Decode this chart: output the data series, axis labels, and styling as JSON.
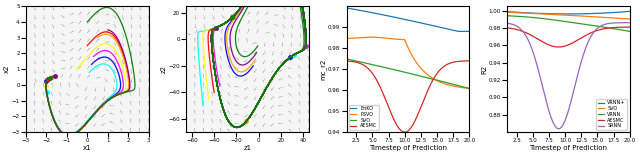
{
  "fig_width": 6.4,
  "fig_height": 1.55,
  "dpi": 100,
  "panel1": {
    "xlabel": "x1",
    "ylabel": "x2",
    "xlim": [
      -3,
      3
    ],
    "ylim": [
      -3,
      5
    ],
    "quiver_color": "#333333",
    "traj_colors": [
      "cyan",
      "blue",
      "magenta",
      "yellow",
      "red",
      "orange",
      "purple",
      "green"
    ],
    "bg_color": "#f5f5f5"
  },
  "panel2": {
    "xlabel": "z1",
    "ylabel": "z2",
    "xlim": [
      -65,
      45
    ],
    "ylim": [
      -70,
      25
    ],
    "quiver_color": "#333333",
    "traj_colors": [
      "cyan",
      "yellow",
      "red",
      "magenta",
      "blue",
      "orange",
      "purple",
      "green"
    ],
    "bg_color": "#f5f5f5"
  },
  "panel3": {
    "xlabel": "Timestep of Prediction",
    "ylabel": "mc_r2",
    "xlim": [
      1,
      20
    ],
    "ylim": [
      0.94,
      1.0
    ],
    "yticks": [
      0.94,
      0.95,
      0.96,
      0.97,
      0.98,
      0.99
    ],
    "xticks": [
      2.5,
      5.0,
      7.5,
      10.0,
      12.5,
      15.0,
      17.5,
      20.0
    ],
    "enko_color": "#1f77b4",
    "psvo_color": "#ff7f0e",
    "svo_color": "#2ca02c",
    "aesmc_color": "#d62728"
  },
  "panel4": {
    "xlabel": "Timestep of Prediction",
    "ylabel": "R2",
    "xlim": [
      1,
      20
    ],
    "ylim": [
      0.86,
      1.005
    ],
    "yticks": [
      0.88,
      0.9,
      0.92,
      0.94,
      0.96,
      0.98,
      1.0
    ],
    "xticks": [
      2.5,
      5.0,
      7.5,
      10.0,
      12.5,
      15.0,
      17.5,
      20.0
    ],
    "vrnnp_color": "#1f77b4",
    "svo_color": "#ff7f0e",
    "vrnn_color": "#2ca02c",
    "aesmc_color": "#d62728",
    "srnn_color": "#9467bd"
  }
}
